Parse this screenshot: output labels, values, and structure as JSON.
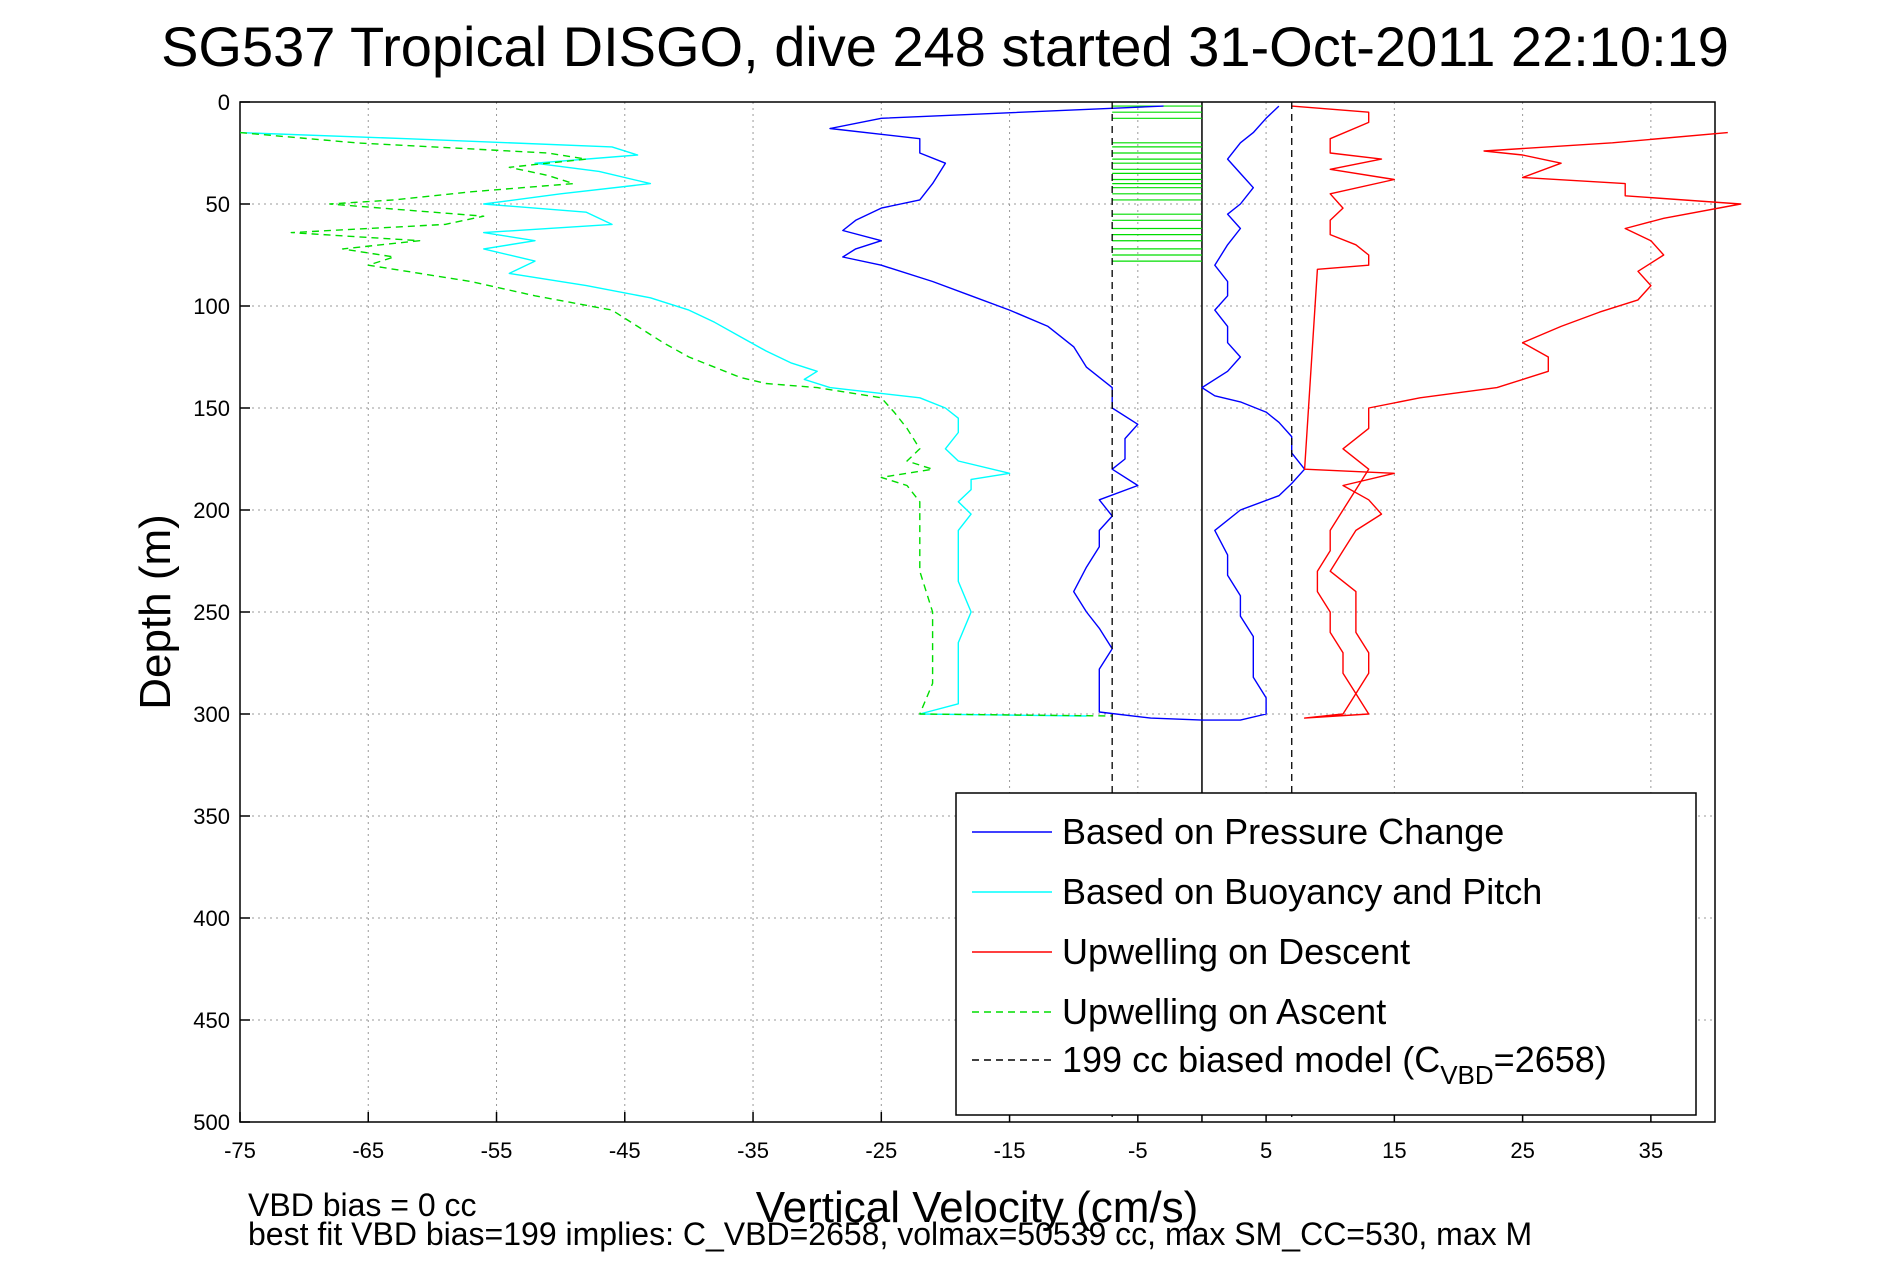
{
  "chart_data": {
    "type": "line",
    "title": "SG537 Tropical DISGO, dive 248 started 31-Oct-2011 22:10:19",
    "xlabel": "Vertical Velocity (cm/s)",
    "ylabel": "Depth (m)",
    "xlim": [
      -75,
      40
    ],
    "ylim": [
      500,
      0
    ],
    "y_reversed": true,
    "grid": true,
    "legend_position": "bottom-right",
    "x_ticks": [
      "-75",
      "-65",
      "-55",
      "-45",
      "-35",
      "-25",
      "-15",
      "-5",
      "5",
      "15",
      "25",
      "35"
    ],
    "y_ticks": [
      "0",
      "50",
      "100",
      "150",
      "200",
      "250",
      "300",
      "350",
      "400",
      "450",
      "500"
    ],
    "series": [
      {
        "name": "Based on Pressure Change",
        "color": "#0000ff",
        "dash": "solid",
        "points": [
          [
            -3,
            2
          ],
          [
            -25,
            8
          ],
          [
            -29,
            13
          ],
          [
            -22,
            18
          ],
          [
            -22,
            25
          ],
          [
            -20,
            30
          ],
          [
            -21,
            40
          ],
          [
            -22,
            48
          ],
          [
            -25,
            52
          ],
          [
            -27,
            58
          ],
          [
            -28,
            63
          ],
          [
            -25,
            68
          ],
          [
            -27,
            72
          ],
          [
            -28,
            76
          ],
          [
            -25,
            80
          ],
          [
            -21,
            88
          ],
          [
            -18,
            95
          ],
          [
            -15,
            102
          ],
          [
            -12,
            110
          ],
          [
            -10,
            120
          ],
          [
            -9,
            130
          ],
          [
            -7,
            140
          ],
          [
            -7,
            150
          ],
          [
            -5,
            158
          ],
          [
            -6,
            165
          ],
          [
            -6,
            175
          ],
          [
            -7,
            180
          ],
          [
            -5,
            188
          ],
          [
            -8,
            195
          ],
          [
            -7,
            203
          ],
          [
            -8,
            210
          ],
          [
            -8,
            218
          ],
          [
            -9,
            228
          ],
          [
            -10,
            240
          ],
          [
            -9,
            250
          ],
          [
            -8,
            258
          ],
          [
            -7,
            268
          ],
          [
            -8,
            278
          ],
          [
            -8,
            290
          ],
          [
            -8,
            299
          ],
          [
            -4,
            302
          ],
          [
            0,
            303
          ],
          [
            3,
            303
          ],
          [
            5,
            300
          ],
          [
            5,
            292
          ],
          [
            4,
            282
          ],
          [
            4,
            272
          ],
          [
            4,
            262
          ],
          [
            3,
            252
          ],
          [
            3,
            242
          ],
          [
            2,
            232
          ],
          [
            2,
            222
          ],
          [
            1,
            210
          ],
          [
            3,
            200
          ],
          [
            6,
            193
          ],
          [
            7,
            187
          ],
          [
            8,
            180
          ],
          [
            7,
            172
          ],
          [
            7,
            164
          ],
          [
            6,
            157
          ],
          [
            5,
            152
          ],
          [
            3,
            147
          ],
          [
            1,
            144
          ],
          [
            0,
            140
          ],
          [
            2,
            132
          ],
          [
            3,
            125
          ],
          [
            2,
            118
          ],
          [
            2,
            110
          ],
          [
            1,
            102
          ],
          [
            2,
            95
          ],
          [
            2,
            88
          ],
          [
            1,
            80
          ],
          [
            2,
            70
          ],
          [
            3,
            62
          ],
          [
            2,
            55
          ],
          [
            3,
            50
          ],
          [
            4,
            42
          ],
          [
            3,
            35
          ],
          [
            2,
            28
          ],
          [
            3,
            20
          ],
          [
            4,
            15
          ],
          [
            5,
            8
          ],
          [
            6,
            2
          ]
        ]
      },
      {
        "name": "Based on Buoyancy and Pitch",
        "color": "#00ffff",
        "dash": "solid",
        "points": [
          [
            -75,
            15
          ],
          [
            -62,
            18
          ],
          [
            -46,
            22
          ],
          [
            -44,
            26
          ],
          [
            -52,
            30
          ],
          [
            -47,
            34
          ],
          [
            -43,
            40
          ],
          [
            -50,
            45
          ],
          [
            -56,
            50
          ],
          [
            -48,
            54
          ],
          [
            -46,
            60
          ],
          [
            -56,
            64
          ],
          [
            -52,
            68
          ],
          [
            -56,
            72
          ],
          [
            -52,
            78
          ],
          [
            -54,
            84
          ],
          [
            -48,
            90
          ],
          [
            -43,
            96
          ],
          [
            -40,
            102
          ],
          [
            -38,
            108
          ],
          [
            -36,
            115
          ],
          [
            -34,
            122
          ],
          [
            -32,
            128
          ],
          [
            -30,
            132
          ],
          [
            -31,
            136
          ],
          [
            -29,
            140
          ],
          [
            -22,
            145
          ],
          [
            -20,
            150
          ],
          [
            -19,
            155
          ],
          [
            -19,
            162
          ],
          [
            -20,
            170
          ],
          [
            -19,
            176
          ],
          [
            -15,
            182
          ],
          [
            -18,
            185
          ],
          [
            -18,
            190
          ],
          [
            -19,
            196
          ],
          [
            -18,
            202
          ],
          [
            -19,
            210
          ],
          [
            -19,
            220
          ],
          [
            -19,
            235
          ],
          [
            -18,
            250
          ],
          [
            -19,
            265
          ],
          [
            -19,
            280
          ],
          [
            -19,
            295
          ],
          [
            -22,
            300
          ],
          [
            -9,
            301
          ]
        ]
      },
      {
        "name": "Upwelling on Descent",
        "color": "#ff0000",
        "dash": "solid",
        "points": [
          [
            7,
            2
          ],
          [
            13,
            5
          ],
          [
            13,
            10
          ],
          [
            10,
            18
          ],
          [
            10,
            25
          ],
          [
            14,
            28
          ],
          [
            10,
            33
          ],
          [
            15,
            38
          ],
          [
            10,
            45
          ],
          [
            11,
            52
          ],
          [
            10,
            58
          ],
          [
            10,
            65
          ],
          [
            12,
            70
          ],
          [
            13,
            75
          ],
          [
            13,
            80
          ],
          [
            9,
            82
          ],
          [
            8,
            180
          ],
          [
            15,
            182
          ],
          [
            11,
            188
          ],
          [
            13,
            195
          ],
          [
            14,
            202
          ],
          [
            12,
            210
          ],
          [
            11,
            220
          ],
          [
            10,
            230
          ],
          [
            12,
            240
          ],
          [
            12,
            250
          ],
          [
            12,
            260
          ],
          [
            13,
            270
          ],
          [
            13,
            280
          ],
          [
            12,
            290
          ],
          [
            13,
            300
          ],
          [
            8,
            302
          ],
          [
            11,
            300
          ],
          [
            12,
            290
          ],
          [
            11,
            280
          ],
          [
            11,
            270
          ],
          [
            10,
            260
          ],
          [
            10,
            250
          ],
          [
            9,
            240
          ],
          [
            9,
            230
          ],
          [
            10,
            220
          ],
          [
            10,
            210
          ],
          [
            11,
            200
          ],
          [
            12,
            190
          ],
          [
            13,
            180
          ],
          [
            11,
            170
          ],
          [
            13,
            160
          ],
          [
            13,
            150
          ],
          [
            17,
            145
          ],
          [
            23,
            140
          ],
          [
            27,
            132
          ],
          [
            27,
            125
          ],
          [
            25,
            118
          ],
          [
            28,
            110
          ],
          [
            31,
            103
          ],
          [
            34,
            97
          ],
          [
            35,
            90
          ],
          [
            34,
            83
          ],
          [
            36,
            75
          ],
          [
            35,
            68
          ],
          [
            33,
            62
          ],
          [
            36,
            57
          ],
          [
            42,
            50
          ],
          [
            33,
            46
          ],
          [
            33,
            40
          ],
          [
            25,
            37
          ],
          [
            28,
            30
          ],
          [
            25,
            26
          ],
          [
            22,
            24
          ],
          [
            32,
            20
          ],
          [
            41,
            15
          ]
        ]
      },
      {
        "name": "Upwelling on Ascent",
        "color": "#00dd00",
        "dash": "dashed",
        "points": [
          [
            -75,
            15
          ],
          [
            -66,
            20
          ],
          [
            -51,
            25
          ],
          [
            -48,
            28
          ],
          [
            -54,
            32
          ],
          [
            -51,
            36
          ],
          [
            -49,
            40
          ],
          [
            -57,
            44
          ],
          [
            -63,
            48
          ],
          [
            -68,
            50
          ],
          [
            -56,
            56
          ],
          [
            -59,
            60
          ],
          [
            -71,
            64
          ],
          [
            -61,
            68
          ],
          [
            -67,
            72
          ],
          [
            -63,
            76
          ],
          [
            -65,
            80
          ],
          [
            -57,
            88
          ],
          [
            -52,
            95
          ],
          [
            -46,
            102
          ],
          [
            -44,
            110
          ],
          [
            -42,
            118
          ],
          [
            -40,
            125
          ],
          [
            -38,
            130
          ],
          [
            -36,
            135
          ],
          [
            -34,
            138
          ],
          [
            -30,
            140
          ],
          [
            -25,
            145
          ],
          [
            -24,
            152
          ],
          [
            -23,
            160
          ],
          [
            -22,
            170
          ],
          [
            -23,
            176
          ],
          [
            -21,
            180
          ],
          [
            -25,
            184
          ],
          [
            -23,
            188
          ],
          [
            -22,
            196
          ],
          [
            -22,
            205
          ],
          [
            -22,
            215
          ],
          [
            -22,
            230
          ],
          [
            -21,
            250
          ],
          [
            -21,
            270
          ],
          [
            -21,
            285
          ],
          [
            -22,
            300
          ],
          [
            -7,
            301
          ]
        ]
      },
      {
        "name": "199 cc biased model (C",
        "name_sub": "VBD",
        "name_suffix": "=2658)",
        "color": "#000000",
        "dash": "dashed",
        "lines": [
          [
            -7,
            0,
            -7,
            500
          ],
          [
            7,
            0,
            7,
            500
          ]
        ]
      }
    ],
    "reference_lines": [
      {
        "color": "#000000",
        "x": 0,
        "y_range": [
          0,
          500
        ]
      },
      {
        "color": "#00dd00",
        "dash": "solid",
        "x_range": [
          -7,
          0
        ],
        "y_values": [
          2,
          5,
          8,
          20,
          22,
          25,
          28,
          30,
          33,
          35,
          38,
          40,
          42,
          45,
          48,
          55,
          58,
          62,
          65,
          68,
          72,
          75,
          78
        ]
      }
    ]
  },
  "footer": {
    "line1": "VBD bias = 0 cc",
    "line2": "best fit VBD bias=199 implies: C_VBD=2658, volmax=50539 cc, max SM_CC=530, max M"
  }
}
